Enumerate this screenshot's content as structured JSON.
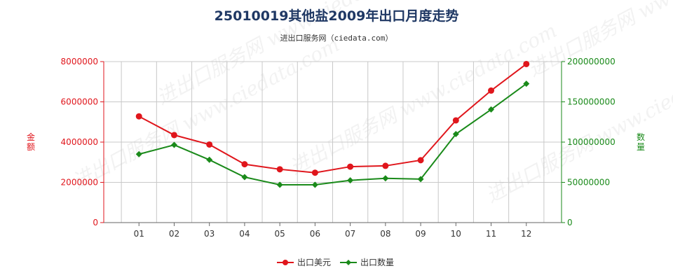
{
  "title": "25010019其他盐2009年出口月度走势",
  "subtitle": "进出口服务网（ciedata.com）",
  "watermark": "进出口服务网 www.ciedata.com",
  "colors": {
    "usd": "#e0161c",
    "qty": "#1a8a1a",
    "grid": "#c8c8c8",
    "axis": "#666666"
  },
  "chart_data": {
    "type": "line",
    "categories": [
      "01",
      "02",
      "03",
      "04",
      "05",
      "06",
      "07",
      "08",
      "09",
      "10",
      "11",
      "12"
    ],
    "ylabel_left": "金额",
    "ylabel_right": "数量",
    "ylim_left": [
      0,
      8000000
    ],
    "ylim_right": [
      0,
      200000000
    ],
    "yticks_left": [
      "0",
      "2000000",
      "4000000",
      "6000000",
      "8000000"
    ],
    "yticks_right": [
      "0",
      "50000000",
      "100000000",
      "150000000",
      "200000000"
    ],
    "grid": true,
    "legend_position": "bottom",
    "series": [
      {
        "name": "出口美元",
        "axis": "left",
        "color": "#e0161c",
        "values": [
          5280000,
          4350000,
          3880000,
          2900000,
          2650000,
          2480000,
          2780000,
          2820000,
          3100000,
          5080000,
          6560000,
          7880000
        ]
      },
      {
        "name": "出口数量",
        "axis": "right",
        "color": "#1a8a1a",
        "values": [
          85000000,
          96500000,
          78000000,
          56500000,
          47000000,
          47000000,
          52500000,
          55000000,
          54000000,
          110000000,
          140500000,
          172500000
        ]
      }
    ]
  }
}
